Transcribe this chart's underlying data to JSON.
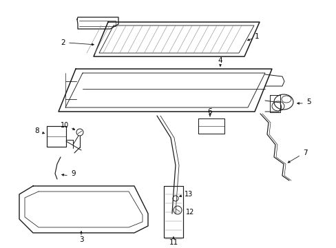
{
  "bg_color": "#ffffff",
  "line_color": "#1a1a1a",
  "text_color": "#000000",
  "figsize": [
    4.89,
    3.6
  ],
  "dpi": 100
}
